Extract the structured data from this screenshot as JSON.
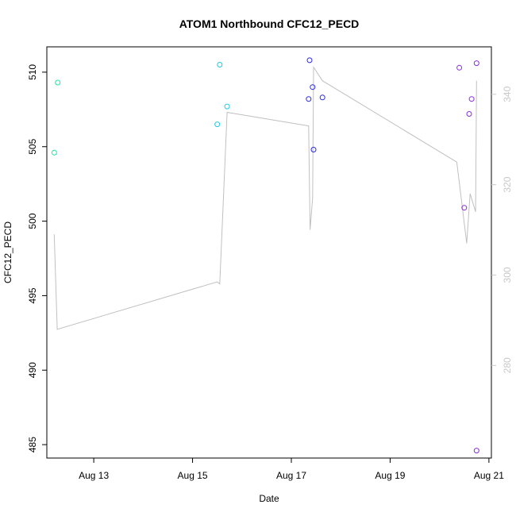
{
  "chart_data": {
    "type": "scatter",
    "title": "ATOM1 Northbound CFC12_PECD",
    "xlabel": "Date",
    "ylabel": "CFC12_PECD",
    "x_ticks": [
      "Aug 13",
      "Aug 15",
      "Aug 17",
      "Aug 19",
      "Aug 21"
    ],
    "x_tick_values": [
      13,
      15,
      17,
      19,
      21
    ],
    "xlim": [
      12.05,
      21.05
    ],
    "y_ticks": [
      485,
      490,
      495,
      500,
      505,
      510
    ],
    "ylim": [
      484.1,
      511.7
    ],
    "y2_ticks": [
      280,
      300,
      320,
      340
    ],
    "y2lim": [
      259.5,
      350.5
    ],
    "grid": false,
    "legend": "none",
    "series": [
      {
        "color": "#1ee6a0",
        "points": [
          {
            "x": 12.2,
            "y": 504.6
          },
          {
            "x": 12.27,
            "y": 509.3
          }
        ]
      },
      {
        "color": "#20c8e0",
        "points": [
          {
            "x": 15.5,
            "y": 506.5
          },
          {
            "x": 15.55,
            "y": 510.5
          },
          {
            "x": 15.7,
            "y": 507.7
          }
        ]
      },
      {
        "color": "#2828e0",
        "points": [
          {
            "x": 17.35,
            "y": 508.2
          },
          {
            "x": 17.37,
            "y": 510.8
          },
          {
            "x": 17.43,
            "y": 509.0
          },
          {
            "x": 17.45,
            "y": 504.8
          },
          {
            "x": 17.63,
            "y": 508.3
          }
        ]
      },
      {
        "color": "#8a2be2",
        "points": [
          {
            "x": 20.4,
            "y": 510.3
          },
          {
            "x": 20.5,
            "y": 500.9
          },
          {
            "x": 20.6,
            "y": 507.2
          },
          {
            "x": 20.65,
            "y": 508.2
          },
          {
            "x": 20.75,
            "y": 510.6
          },
          {
            "x": 20.75,
            "y": 484.6
          }
        ]
      }
    ],
    "secondary_line": {
      "color": "#c0c0c0",
      "points": [
        {
          "x": 12.2,
          "y": 309
        },
        {
          "x": 12.26,
          "y": 288
        },
        {
          "x": 15.5,
          "y": 298.5
        },
        {
          "x": 15.55,
          "y": 298
        },
        {
          "x": 15.7,
          "y": 336
        },
        {
          "x": 17.35,
          "y": 333
        },
        {
          "x": 17.38,
          "y": 310
        },
        {
          "x": 17.43,
          "y": 317
        },
        {
          "x": 17.45,
          "y": 346
        },
        {
          "x": 17.63,
          "y": 343
        },
        {
          "x": 20.35,
          "y": 325
        },
        {
          "x": 20.45,
          "y": 316
        },
        {
          "x": 20.55,
          "y": 307
        },
        {
          "x": 20.62,
          "y": 318
        },
        {
          "x": 20.73,
          "y": 314
        },
        {
          "x": 20.75,
          "y": 343
        }
      ]
    }
  }
}
